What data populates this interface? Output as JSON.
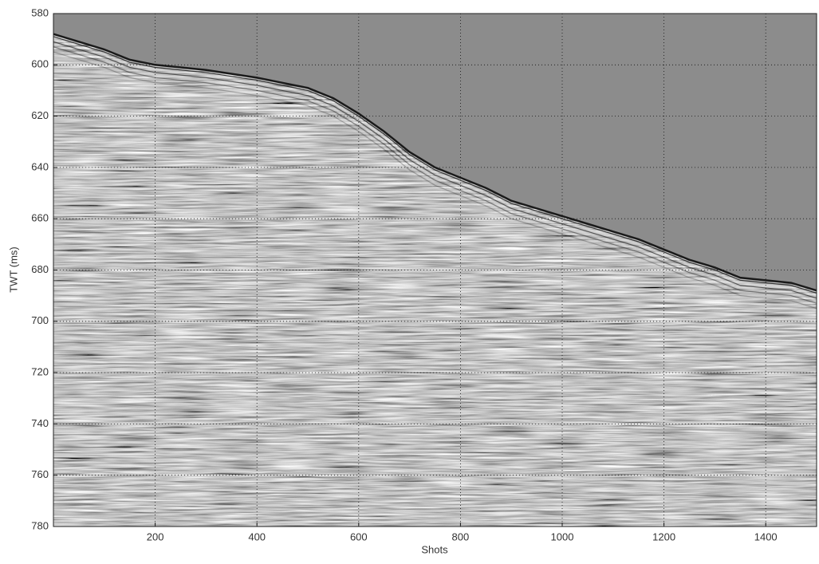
{
  "chart_data": {
    "type": "seismic",
    "x_label": "Shots",
    "y_label": "TWT (ms)",
    "x": [
      0,
      50,
      100,
      150,
      200,
      300,
      400,
      450,
      500,
      550,
      600,
      650,
      700,
      750,
      800,
      850,
      900,
      950,
      1000,
      1050,
      1100,
      1150,
      1200,
      1250,
      1300,
      1350,
      1400,
      1450,
      1500
    ],
    "values": [
      588,
      591,
      594,
      598,
      600,
      602,
      605,
      607,
      609,
      613,
      619,
      626,
      634,
      640,
      644,
      648,
      653,
      656,
      659,
      662,
      665,
      668,
      672,
      676,
      679,
      683,
      684,
      685,
      688
    ],
    "color": "#1a1a1a",
    "xlim": [
      0,
      1500
    ],
    "xticks": [
      200,
      400,
      600,
      800,
      1000,
      1200,
      1400
    ],
    "ylim": [
      780,
      580
    ],
    "yticks": [
      580,
      600,
      620,
      640,
      660,
      680,
      700,
      720,
      740,
      760,
      780
    ],
    "grid": true
  }
}
